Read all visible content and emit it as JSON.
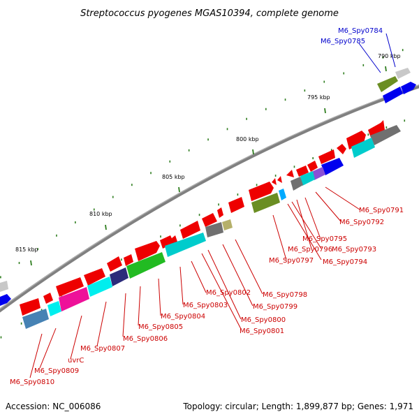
{
  "title": "Streptococcus pyogenes MGAS10394, complete genome",
  "footer": {
    "accession": "Accession: NC_006086",
    "summary": "Topology: circular; Length: 1,899,877 bp; Genes: 1,971"
  },
  "colors": {
    "label_red": "#cc0000",
    "label_blue": "#0000cc",
    "backbone": "#808080",
    "tick": "#2e7d1e"
  },
  "scale": {
    "unit_labels": [
      "790 kbp",
      "795 kbp",
      "800 kbp",
      "805 kbp",
      "810 kbp",
      "815 kbp"
    ]
  },
  "gene_labels": [
    {
      "text": "M6_Spy0784",
      "color": "blue"
    },
    {
      "text": "M6_Spy0785",
      "color": "blue"
    },
    {
      "text": "M6_Spy0791",
      "color": "red"
    },
    {
      "text": "M6_Spy0792",
      "color": "red"
    },
    {
      "text": "M6_Spy0795",
      "color": "red"
    },
    {
      "text": "M6_Spy0796",
      "color": "red"
    },
    {
      "text": "M6_Spy0793",
      "color": "red"
    },
    {
      "text": "M6_Spy0794",
      "color": "red"
    },
    {
      "text": "M6_Spy0797",
      "color": "red"
    },
    {
      "text": "M6_Spy0798",
      "color": "red"
    },
    {
      "text": "M6_Spy0799",
      "color": "red"
    },
    {
      "text": "M6_Spy0800",
      "color": "red"
    },
    {
      "text": "M6_Spy0801",
      "color": "red"
    },
    {
      "text": "M6_Spy0802",
      "color": "red"
    },
    {
      "text": "M6_Spy0803",
      "color": "red"
    },
    {
      "text": "M6_Spy0804",
      "color": "red"
    },
    {
      "text": "M6_Spy0805",
      "color": "red"
    },
    {
      "text": "M6_Spy0806",
      "color": "red"
    },
    {
      "text": "M6_Spy0807",
      "color": "red"
    },
    {
      "text": "uvrC",
      "color": "red"
    },
    {
      "text": "M6_Spy0809",
      "color": "red"
    },
    {
      "text": "M6_Spy0810",
      "color": "red"
    }
  ]
}
